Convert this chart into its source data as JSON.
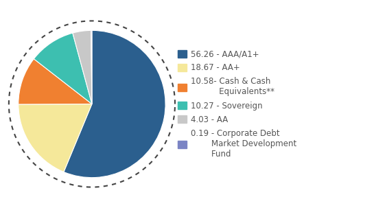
{
  "slices": [
    56.26,
    18.67,
    10.58,
    10.27,
    4.03,
    0.19
  ],
  "colors": [
    "#2b5f8e",
    "#f5e89a",
    "#f08030",
    "#3dbfb0",
    "#c8c8c8",
    "#7b84c4"
  ],
  "labels": [
    "56.26 - AAA/A1+",
    "18.67 - AA+",
    "10.58- Cash & Cash\n           Equivalents**",
    "10.27 - Sovereign",
    "4.03 - AA",
    "0.19 - Corporate Debt\n        Market Development\n        Fund"
  ],
  "background_color": "#ffffff",
  "startangle": 90,
  "legend_fontsize": 8.5,
  "text_color": "#555555",
  "dash_color": "#444444"
}
